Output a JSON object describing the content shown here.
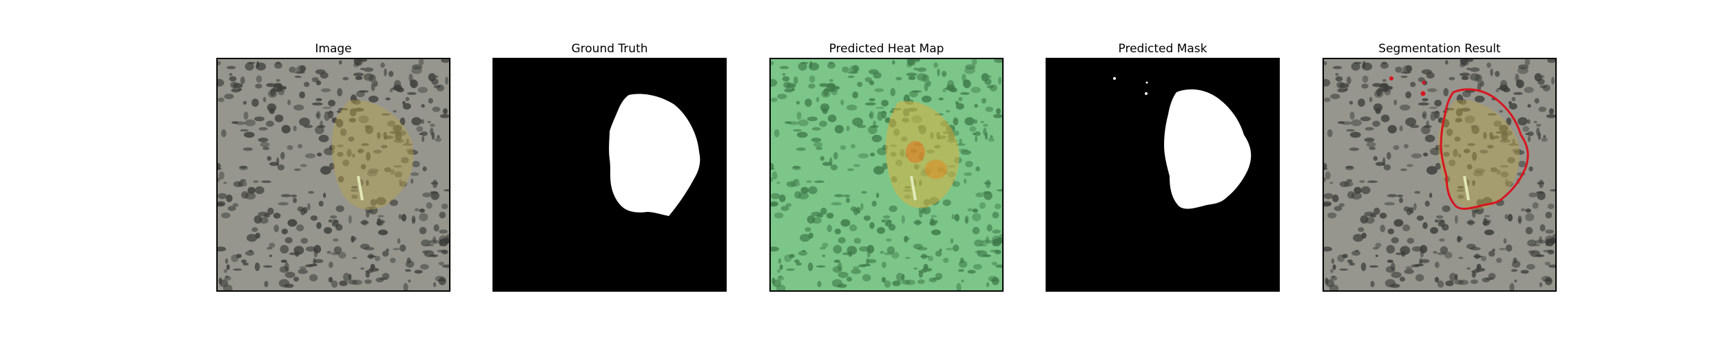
{
  "panels": [
    {
      "title": "Image",
      "kind": "image"
    },
    {
      "title": "Ground Truth",
      "kind": "mask"
    },
    {
      "title": "Predicted Heat Map",
      "kind": "heatmap"
    },
    {
      "title": "Predicted Mask",
      "kind": "mask"
    },
    {
      "title": "Segmentation Result",
      "kind": "overlay"
    }
  ],
  "colors": {
    "background_gray": "#96968e",
    "speckle_dark": "#3c3c3a",
    "lesion_tint": "#b8a34a",
    "heatmap_green": "#7cc68a",
    "heatmap_hot": "#e0a020",
    "mask_white": "#ffffff",
    "mask_black": "#000000",
    "contour_red": "#d8141e"
  }
}
